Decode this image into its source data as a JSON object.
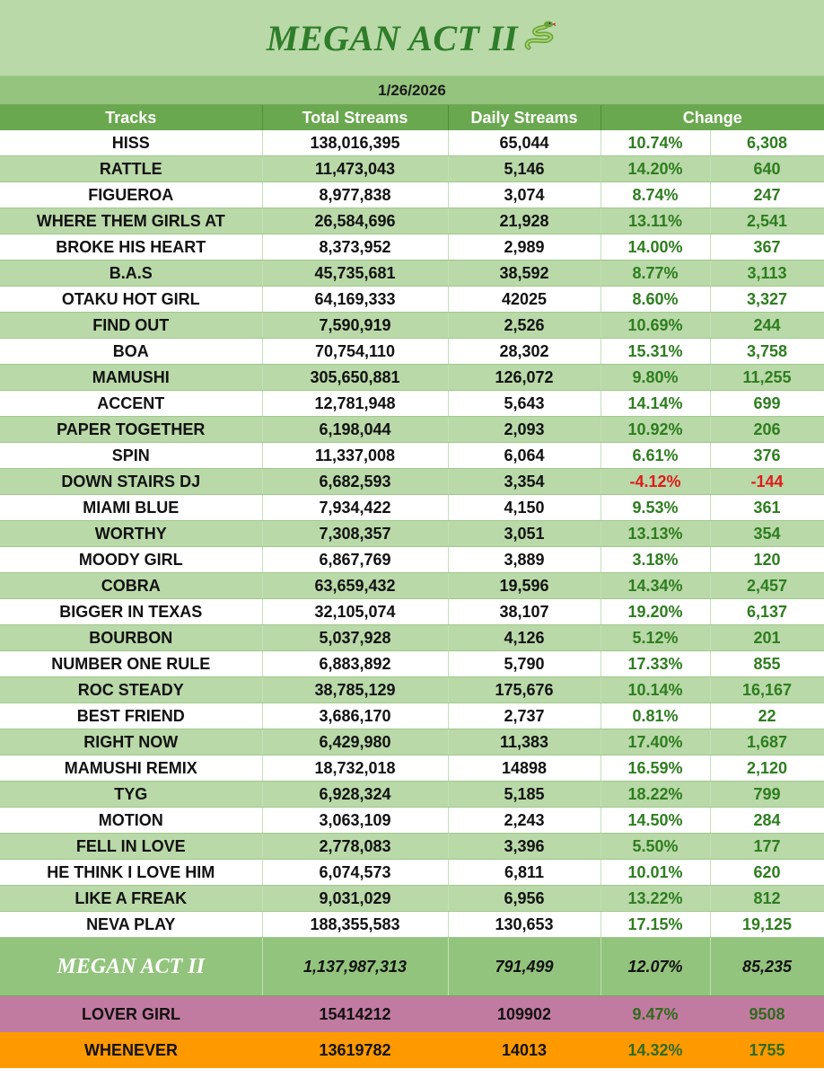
{
  "title": "MEGAN ACT II",
  "date": "1/26/2026",
  "headers": {
    "tracks": "Tracks",
    "total": "Total Streams",
    "daily": "Daily Streams",
    "change": "Change"
  },
  "tracks": [
    {
      "name": "HISS",
      "total": "138,016,395",
      "daily": "65,044",
      "pct": "10.74%",
      "change": "6,308"
    },
    {
      "name": "RATTLE",
      "total": "11,473,043",
      "daily": "5,146",
      "pct": "14.20%",
      "change": "640"
    },
    {
      "name": "FIGUEROA",
      "total": "8,977,838",
      "daily": "3,074",
      "pct": "8.74%",
      "change": "247"
    },
    {
      "name": "WHERE THEM GIRLS AT",
      "total": "26,584,696",
      "daily": "21,928",
      "pct": "13.11%",
      "change": "2,541"
    },
    {
      "name": "BROKE HIS HEART",
      "total": "8,373,952",
      "daily": "2,989",
      "pct": "14.00%",
      "change": "367"
    },
    {
      "name": "B.A.S",
      "total": "45,735,681",
      "daily": "38,592",
      "pct": "8.77%",
      "change": "3,113"
    },
    {
      "name": "OTAKU HOT GIRL",
      "total": "64,169,333",
      "daily": "42025",
      "pct": "8.60%",
      "change": "3,327"
    },
    {
      "name": "FIND OUT",
      "total": "7,590,919",
      "daily": "2,526",
      "pct": "10.69%",
      "change": "244"
    },
    {
      "name": "BOA",
      "total": "70,754,110",
      "daily": "28,302",
      "pct": "15.31%",
      "change": "3,758"
    },
    {
      "name": "MAMUSHI",
      "total": "305,650,881",
      "daily": "126,072",
      "pct": "9.80%",
      "change": "11,255"
    },
    {
      "name": "ACCENT",
      "total": "12,781,948",
      "daily": "5,643",
      "pct": "14.14%",
      "change": "699"
    },
    {
      "name": "PAPER TOGETHER",
      "total": "6,198,044",
      "daily": "2,093",
      "pct": "10.92%",
      "change": "206"
    },
    {
      "name": "SPIN",
      "total": "11,337,008",
      "daily": "6,064",
      "pct": "6.61%",
      "change": "376"
    },
    {
      "name": "DOWN STAIRS DJ",
      "total": "6,682,593",
      "daily": "3,354",
      "pct": "-4.12%",
      "change": "-144"
    },
    {
      "name": "MIAMI BLUE",
      "total": "7,934,422",
      "daily": "4,150",
      "pct": "9.53%",
      "change": "361"
    },
    {
      "name": "WORTHY",
      "total": "7,308,357",
      "daily": "3,051",
      "pct": "13.13%",
      "change": "354"
    },
    {
      "name": "MOODY GIRL",
      "total": "6,867,769",
      "daily": "3,889",
      "pct": "3.18%",
      "change": "120"
    },
    {
      "name": "COBRA",
      "total": "63,659,432",
      "daily": "19,596",
      "pct": "14.34%",
      "change": "2,457"
    },
    {
      "name": "BIGGER IN TEXAS",
      "total": "32,105,074",
      "daily": "38,107",
      "pct": "19.20%",
      "change": "6,137"
    },
    {
      "name": "BOURBON",
      "total": "5,037,928",
      "daily": "4,126",
      "pct": "5.12%",
      "change": "201"
    },
    {
      "name": "NUMBER ONE RULE",
      "total": "6,883,892",
      "daily": "5,790",
      "pct": "17.33%",
      "change": "855"
    },
    {
      "name": "ROC STEADY",
      "total": "38,785,129",
      "daily": "175,676",
      "pct": "10.14%",
      "change": "16,167"
    },
    {
      "name": "BEST FRIEND",
      "total": "3,686,170",
      "daily": "2,737",
      "pct": "0.81%",
      "change": "22"
    },
    {
      "name": "RIGHT NOW",
      "total": "6,429,980",
      "daily": "11,383",
      "pct": "17.40%",
      "change": "1,687"
    },
    {
      "name": "MAMUSHI REMIX",
      "total": "18,732,018",
      "daily": "14898",
      "pct": "16.59%",
      "change": "2,120"
    },
    {
      "name": "TYG",
      "total": "6,928,324",
      "daily": "5,185",
      "pct": "18.22%",
      "change": "799"
    },
    {
      "name": "MOTION",
      "total": "3,063,109",
      "daily": "2,243",
      "pct": "14.50%",
      "change": "284"
    },
    {
      "name": "FELL IN LOVE",
      "total": "2,778,083",
      "daily": "3,396",
      "pct": "5.50%",
      "change": "177"
    },
    {
      "name": "HE THINK I LOVE HIM",
      "total": "6,074,573",
      "daily": "6,811",
      "pct": "10.01%",
      "change": "620"
    },
    {
      "name": "LIKE A FREAK",
      "total": "9,031,029",
      "daily": "6,956",
      "pct": "13.22%",
      "change": "812"
    },
    {
      "name": "NEVA PLAY",
      "total": "188,355,583",
      "daily": "130,653",
      "pct": "17.15%",
      "change": "19,125"
    }
  ],
  "total": {
    "name": "MEGAN ACT II",
    "total": "1,137,987,313",
    "daily": "791,499",
    "pct": "12.07%",
    "change": "85,235"
  },
  "extra": [
    {
      "name": "LOVER GIRL",
      "total": "15414212",
      "daily": "109902",
      "pct": "9.47%",
      "change": "9508"
    },
    {
      "name": "WHENEVER",
      "total": "13619782",
      "daily": "14013",
      "pct": "14.32%",
      "change": "1755"
    }
  ],
  "icons": {
    "title_icon": "snake-icon"
  },
  "colors": {
    "band": "#b9d9a8",
    "header": "#6aa84f",
    "positive": "#2e7d1f",
    "negative": "#e01b1b",
    "lover": "#c27ba0",
    "whenever": "#ff9900"
  }
}
